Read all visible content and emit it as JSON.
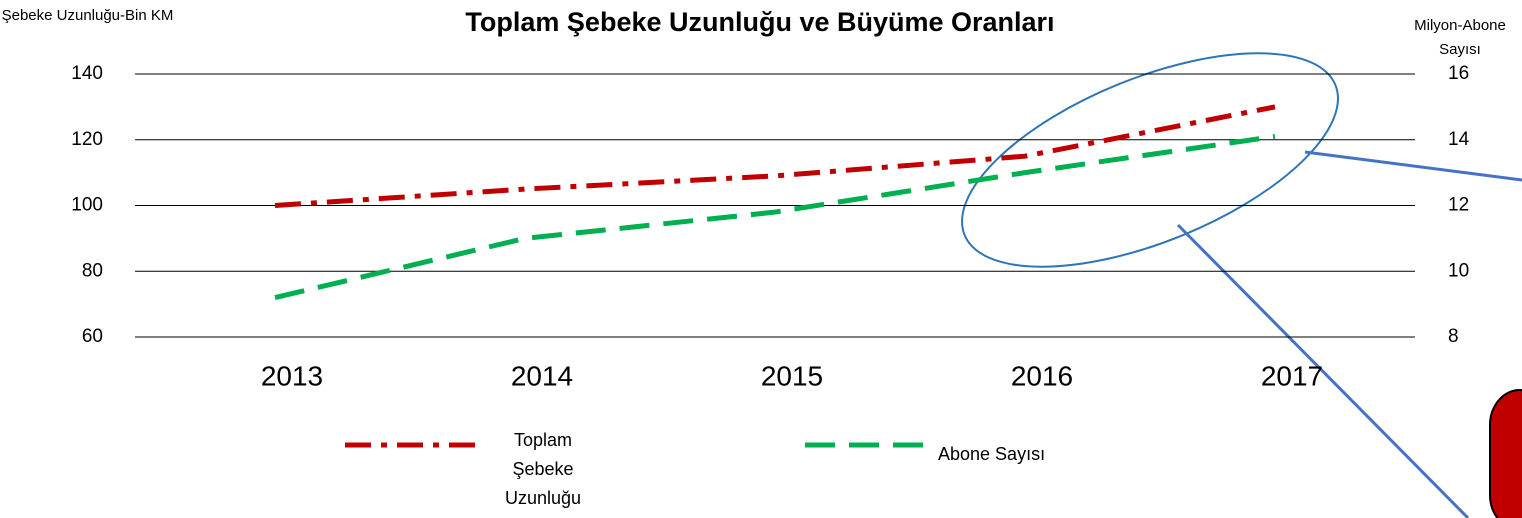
{
  "chart_data": {
    "type": "line",
    "title": "Toplam Şebeke Uzunluğu ve Büyüme Oranları",
    "y_label": "Şebeke Uzunluğu-Bin KM",
    "y2_label": "Milyon-Abone Sayısı",
    "categories": [
      "2013",
      "2014",
      "2015",
      "2016",
      "2017"
    ],
    "series": [
      {
        "name": "Toplam Şebeke Uzunluğu",
        "color": "#c00000",
        "dash": "dashdot",
        "values": [
          100,
          105,
          109,
          115,
          130
        ]
      },
      {
        "name": "Abone Sayısı",
        "color": "#00b050",
        "dash": "dash",
        "axis": "y2",
        "values": [
          9.2,
          11,
          11.8,
          13,
          14.1
        ]
      }
    ],
    "ylim": [
      60,
      140
    ],
    "yticks": [
      60,
      80,
      100,
      120,
      140
    ],
    "y2lim": [
      8,
      16
    ],
    "y2ticks": [
      8,
      10,
      12,
      14,
      16
    ],
    "grid": true
  }
}
